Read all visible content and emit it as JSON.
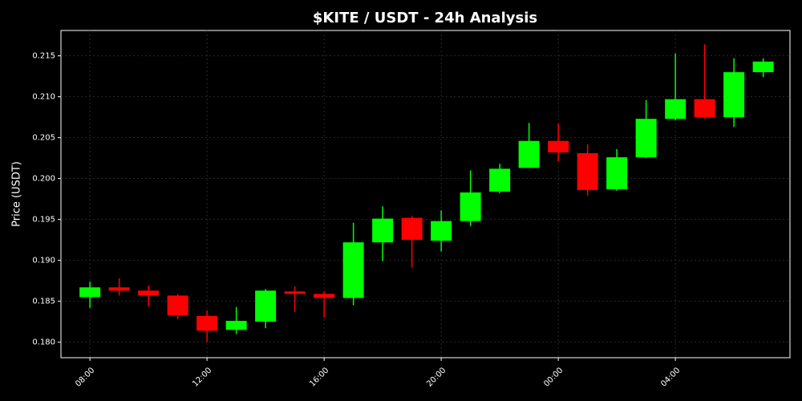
{
  "chart_data": {
    "type": "candlestick",
    "title": "$KITE / USDT - 24h Analysis",
    "y_label": "Price (USDT)",
    "categories": [
      "08:00",
      null,
      null,
      null,
      "12:00",
      null,
      null,
      null,
      "16:00",
      null,
      null,
      null,
      "20:00",
      null,
      null,
      null,
      "00:00",
      null,
      null,
      null,
      "04:00",
      null,
      null,
      null
    ],
    "open": [
      0.1855,
      0.1867,
      0.1863,
      0.1857,
      0.1832,
      0.1815,
      0.1825,
      0.1862,
      0.1859,
      0.1854,
      0.1922,
      0.1952,
      0.1924,
      0.1948,
      0.1984,
      0.2013,
      0.2046,
      0.2031,
      0.1987,
      0.2026,
      0.2073,
      0.2097,
      0.2075,
      0.213
    ],
    "high": [
      0.1874,
      0.1878,
      0.1869,
      0.1859,
      0.1839,
      0.1843,
      0.1865,
      0.1868,
      0.1862,
      0.1946,
      0.1966,
      0.1954,
      0.1961,
      0.201,
      0.2018,
      0.2068,
      0.2067,
      0.2042,
      0.2036,
      0.2096,
      0.2153,
      0.2164,
      0.2147,
      0.2147
    ],
    "low": [
      0.1842,
      0.1857,
      0.1844,
      0.1828,
      0.18,
      0.181,
      0.1817,
      0.1837,
      0.183,
      0.1845,
      0.1899,
      0.1891,
      0.1911,
      0.1942,
      0.1982,
      0.2013,
      0.2021,
      0.1979,
      0.1985,
      0.2025,
      0.2071,
      0.2073,
      0.2063,
      0.2124
    ],
    "close": [
      0.1867,
      0.1863,
      0.1857,
      0.1833,
      0.1814,
      0.1826,
      0.1863,
      0.1859,
      0.1854,
      0.1922,
      0.1951,
      0.1925,
      0.1948,
      0.1983,
      0.2012,
      0.2046,
      0.2032,
      0.1986,
      0.2026,
      0.2073,
      0.2097,
      0.2075,
      0.213,
      0.2143
    ],
    "up_color": "#00ff00",
    "down_color": "#ff0000",
    "ylim": [
      0.1781,
      0.2181
    ],
    "yticks": [
      {
        "value": 0.18,
        "label": "0.180"
      },
      0.185,
      {
        "value": 0.19,
        "label": "0.190"
      },
      0.195,
      {
        "value": 0.2,
        "label": "0.200"
      },
      0.205,
      {
        "value": 0.21,
        "label": "0.210"
      },
      0.215
    ],
    "grid": true
  }
}
